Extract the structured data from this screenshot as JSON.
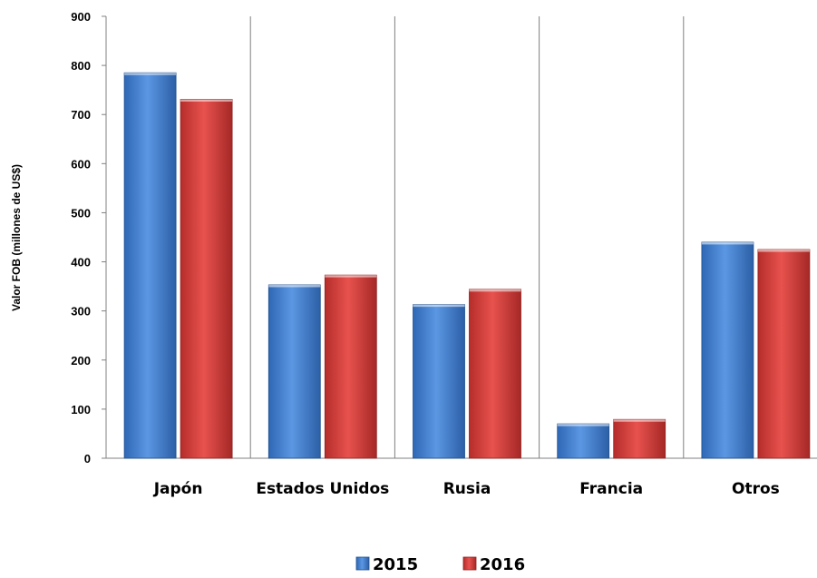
{
  "chart_data": {
    "type": "bar",
    "title": "",
    "xlabel": "",
    "ylabel": "Valor FOB (millones de US$)",
    "ylim": [
      0,
      900
    ],
    "yticks": [
      0,
      100,
      200,
      300,
      400,
      500,
      600,
      700,
      800,
      900
    ],
    "categories": [
      "Japón",
      "Estados Unidos",
      "Rusia",
      "Francia",
      "Otros"
    ],
    "series": [
      {
        "name": "2015",
        "color": "#4a86d4",
        "values": [
          785,
          353,
          313,
          70,
          440
        ]
      },
      {
        "name": "2016",
        "color": "#d9413e",
        "values": [
          731,
          373,
          344,
          79,
          425
        ]
      }
    ],
    "grid": "vertical category separators",
    "legend": "bottom-center"
  }
}
